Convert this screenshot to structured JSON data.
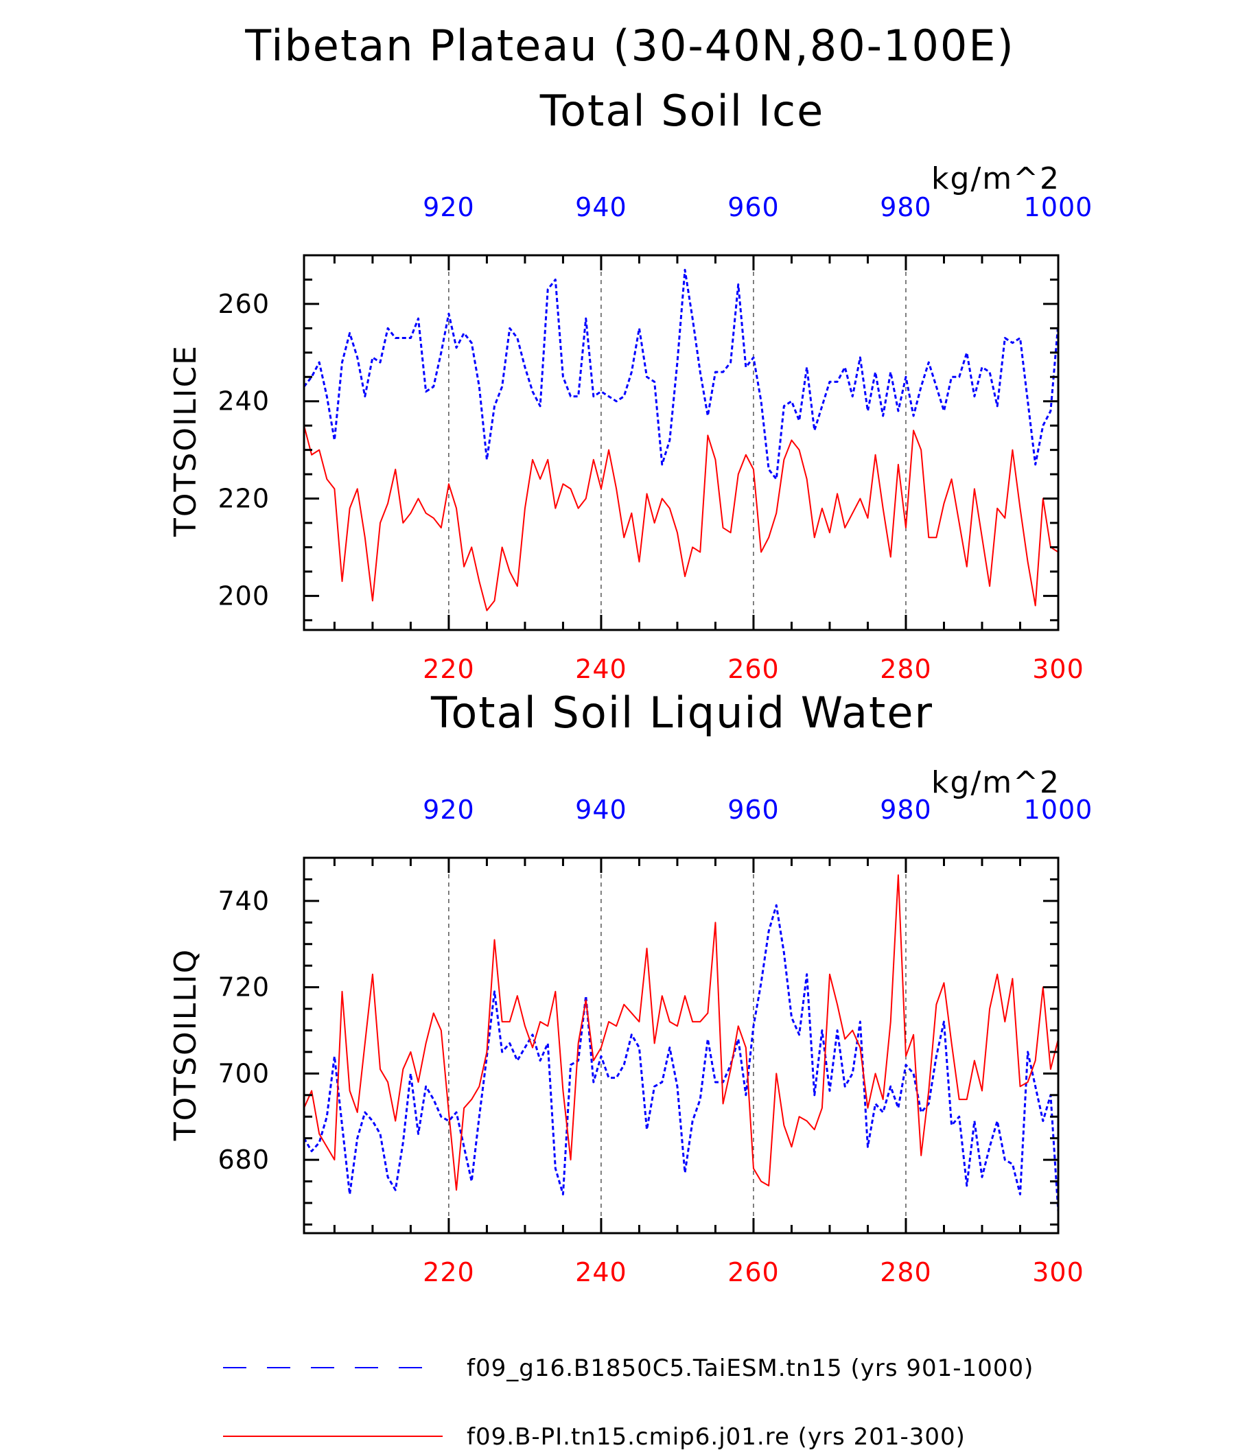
{
  "main_title": "Tibetan Plateau (30-40N,80-100E)",
  "colors": {
    "blue_series": "#0000ff",
    "red_series": "#ff0000",
    "axes": "#000000",
    "gridlines": "#000000"
  },
  "legend": [
    {
      "label": "f09_g16.B1850C5.TaiESM.tn15 (yrs 901-1000)",
      "color": "#0000ff",
      "style": "dashed"
    },
    {
      "label": "f09.B-PI.tn15.cmip6.j01.re (yrs 201-300)",
      "color": "#ff0000",
      "style": "solid"
    }
  ],
  "chart_data": [
    {
      "type": "line",
      "title": "Total Soil Ice",
      "ylabel": "TOTSOILICE",
      "units": "kg/m^2",
      "ylim": [
        193,
        270
      ],
      "yticks": [
        "200",
        "220",
        "240",
        "260"
      ],
      "top_axis": {
        "range": [
          901,
          1000
        ],
        "ticks": [
          "920",
          "940",
          "960",
          "980",
          "1000"
        ],
        "color": "#0000ff"
      },
      "bottom_axis": {
        "range": [
          201,
          300
        ],
        "ticks": [
          "220",
          "240",
          "260",
          "280",
          "300"
        ],
        "color": "#ff0000"
      },
      "grid": "dashed vertical lines at 220, 240, 260, 280",
      "series": [
        {
          "years": "901-1000",
          "color": "#0000ff",
          "style": "dashed",
          "values": [
            243,
            245,
            248,
            241,
            232,
            248,
            254,
            249,
            241,
            249,
            248,
            255,
            253,
            253,
            253,
            257,
            242,
            243,
            250,
            258,
            251,
            254,
            252,
            243,
            228,
            239,
            243,
            255,
            253,
            247,
            242,
            239,
            263,
            265,
            245,
            241,
            241,
            257,
            241,
            242,
            241,
            240,
            241,
            246,
            255,
            245,
            244,
            227,
            232,
            248,
            267,
            257,
            246,
            237,
            246,
            246,
            248,
            264,
            247,
            249,
            240,
            226,
            224,
            239,
            240,
            236,
            247,
            234,
            239,
            244,
            244,
            247,
            241,
            249,
            238,
            246,
            237,
            246,
            238,
            245,
            237,
            243,
            248,
            243,
            238,
            245,
            245,
            250,
            241,
            247,
            246,
            239,
            253,
            252,
            253,
            240,
            227,
            235,
            238,
            256
          ]
        },
        {
          "years": "201-300",
          "color": "#ff0000",
          "style": "solid",
          "values": [
            235,
            229,
            230,
            224,
            222,
            203,
            218,
            222,
            212,
            199,
            215,
            219,
            226,
            215,
            217,
            220,
            217,
            216,
            214,
            223,
            218,
            206,
            210,
            203,
            197,
            199,
            210,
            205,
            202,
            218,
            228,
            224,
            228,
            218,
            223,
            222,
            218,
            220,
            228,
            222,
            230,
            222,
            212,
            217,
            207,
            221,
            215,
            220,
            218,
            213,
            204,
            210,
            209,
            233,
            228,
            214,
            213,
            225,
            229,
            226,
            209,
            212,
            217,
            228,
            232,
            230,
            224,
            212,
            218,
            213,
            221,
            214,
            217,
            220,
            216,
            229,
            218,
            208,
            227,
            214,
            234,
            230,
            212,
            212,
            219,
            224,
            215,
            206,
            222,
            212,
            202,
            218,
            216,
            230,
            218,
            207,
            198,
            220,
            210,
            209
          ]
        }
      ]
    },
    {
      "type": "line",
      "title": "Total Soil Liquid Water",
      "ylabel": "TOTSOILLIQ",
      "units": "kg/m^2",
      "ylim": [
        663,
        750
      ],
      "yticks": [
        "680",
        "700",
        "720",
        "740"
      ],
      "top_axis": {
        "range": [
          901,
          1000
        ],
        "ticks": [
          "920",
          "940",
          "960",
          "980",
          "1000"
        ],
        "color": "#0000ff"
      },
      "bottom_axis": {
        "range": [
          201,
          300
        ],
        "ticks": [
          "220",
          "240",
          "260",
          "280",
          "300"
        ],
        "color": "#ff0000"
      },
      "grid": "dashed vertical lines at 220, 240, 260, 280",
      "series": [
        {
          "years": "901-1000",
          "color": "#0000ff",
          "style": "dashed",
          "values": [
            685,
            682,
            684,
            690,
            704,
            688,
            672,
            685,
            691,
            689,
            686,
            676,
            673,
            684,
            700,
            686,
            697,
            694,
            690,
            689,
            691,
            683,
            675,
            690,
            704,
            719,
            705,
            707,
            703,
            706,
            709,
            703,
            707,
            678,
            672,
            702,
            703,
            718,
            698,
            704,
            699,
            699,
            702,
            709,
            706,
            687,
            697,
            698,
            706,
            697,
            677,
            689,
            694,
            708,
            698,
            698,
            702,
            708,
            695,
            711,
            721,
            733,
            739,
            728,
            713,
            709,
            723,
            695,
            710,
            696,
            710,
            697,
            700,
            712,
            683,
            693,
            691,
            697,
            692,
            702,
            700,
            691,
            693,
            704,
            712,
            688,
            690,
            674,
            689,
            676,
            683,
            689,
            680,
            679,
            672,
            705,
            697,
            689,
            695,
            668
          ]
        },
        {
          "years": "201-300",
          "color": "#ff0000",
          "style": "solid",
          "values": [
            692,
            696,
            686,
            683,
            680,
            719,
            696,
            691,
            707,
            723,
            701,
            698,
            689,
            701,
            705,
            698,
            707,
            714,
            710,
            691,
            673,
            692,
            694,
            697,
            705,
            731,
            712,
            712,
            718,
            711,
            706,
            712,
            711,
            719,
            696,
            680,
            707,
            717,
            703,
            706,
            712,
            711,
            716,
            714,
            712,
            729,
            707,
            718,
            712,
            711,
            718,
            712,
            712,
            714,
            735,
            693,
            701,
            711,
            706,
            678,
            675,
            674,
            700,
            688,
            683,
            690,
            689,
            687,
            692,
            723,
            716,
            708,
            710,
            706,
            692,
            700,
            694,
            712,
            746,
            704,
            709,
            681,
            696,
            716,
            721,
            707,
            694,
            694,
            703,
            696,
            715,
            723,
            712,
            722,
            697,
            698,
            703,
            720,
            701,
            708
          ]
        }
      ]
    }
  ]
}
